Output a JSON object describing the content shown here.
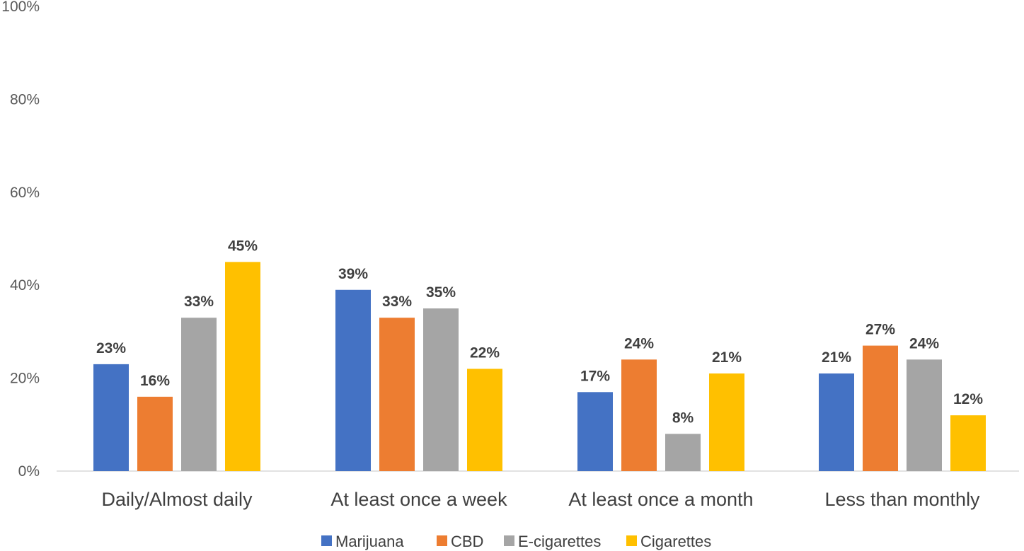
{
  "chart_data": {
    "type": "bar",
    "title": "",
    "xlabel": "",
    "ylabel": "",
    "ylim": [
      0,
      100
    ],
    "y_ticks": [
      "0%",
      "20%",
      "40%",
      "60%",
      "80%",
      "100%"
    ],
    "y_tick_values": [
      0,
      20,
      40,
      60,
      80,
      100
    ],
    "grid": false,
    "legend_position": "bottom",
    "categories": [
      "Daily/Almost daily",
      "At least once a week",
      "At least once a month",
      "Less than monthly"
    ],
    "series": [
      {
        "name": "Marijuana",
        "color": "#4472C4",
        "values": [
          23,
          39,
          17,
          21
        ],
        "labels": [
          "23%",
          "39%",
          "17%",
          "21%"
        ]
      },
      {
        "name": "CBD",
        "color": "#ED7D31",
        "values": [
          16,
          33,
          24,
          27
        ],
        "labels": [
          "16%",
          "33%",
          "24%",
          "27%"
        ]
      },
      {
        "name": "E-cigarettes",
        "color": "#A5A5A5",
        "values": [
          33,
          35,
          8,
          24
        ],
        "labels": [
          "33%",
          "35%",
          "8%",
          "24%"
        ]
      },
      {
        "name": "Cigarettes",
        "color": "#FFC000",
        "values": [
          45,
          22,
          21,
          12
        ],
        "labels": [
          "45%",
          "22%",
          "21%",
          "12%"
        ]
      }
    ]
  }
}
